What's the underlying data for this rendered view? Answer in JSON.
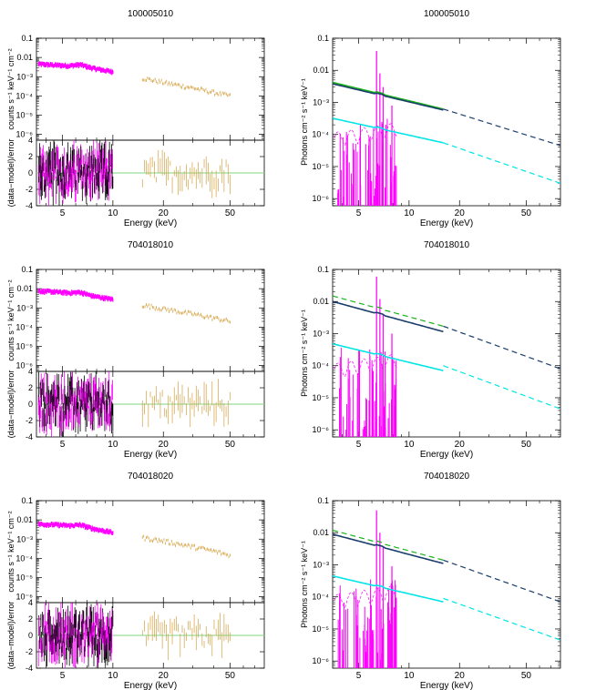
{
  "chart_data": [
    {
      "type": "scatter",
      "title": "100005010",
      "xlabel": "Energy (keV)",
      "ylabel": "counts s⁻¹ keV⁻¹ cm⁻²",
      "x_scale": "log",
      "xlim": [
        3.5,
        80
      ],
      "x_ticks": [
        5,
        10,
        20,
        50
      ],
      "y_scale": "log",
      "ylim": [
        5e-07,
        0.1
      ],
      "y_tick_labels": [
        "0.1",
        "0.01",
        "10⁻³",
        "10⁻⁴",
        "10⁻⁵",
        "10⁻⁶"
      ],
      "series": [
        {
          "name": "low-energy spectrum",
          "color": "#ff00ff",
          "x": [
            3.6,
            4.5,
            5.5,
            6.4,
            7.5,
            9,
            10
          ],
          "y": [
            0.0045,
            0.004,
            0.0037,
            0.0042,
            0.0028,
            0.0021,
            0.0018
          ]
        },
        {
          "name": "high-energy spectrum",
          "color": "#d4a040",
          "x": [
            15,
            20,
            30,
            40,
            50
          ],
          "y": [
            0.00085,
            0.0005,
            0.00026,
            0.00015,
            0.0001
          ]
        }
      ],
      "residuals": {
        "ylabel": "(data−model)/error",
        "ylim": [
          -4,
          4
        ],
        "y_ticks": [
          -4,
          -2,
          0,
          2,
          4
        ],
        "zero_line_color": "#7fd37f"
      }
    },
    {
      "type": "line",
      "title": "100005010",
      "xlabel": "Energy (keV)",
      "ylabel": "Photons cm⁻² s⁻¹ keV⁻¹",
      "x_scale": "log",
      "xlim": [
        3.5,
        80
      ],
      "x_ticks": [
        5,
        10,
        20,
        50
      ],
      "y_scale": "log",
      "ylim": [
        6e-07,
        0.1
      ],
      "y_tick_labels": [
        "0.1",
        "0.01",
        "10⁻³",
        "10⁻⁴",
        "10⁻⁵",
        "10⁻⁶"
      ],
      "series": [
        {
          "name": "total model (green)",
          "color": "#19b319",
          "style": "solid",
          "x": [
            3.5,
            16
          ],
          "y": [
            0.0042,
            0.00062
          ]
        },
        {
          "name": "total model (navy)",
          "color": "#1a3d6b",
          "style": "solid",
          "x": [
            3.5,
            16
          ],
          "y": [
            0.0038,
            0.00058
          ]
        },
        {
          "name": "extrapolation",
          "color": "#1a3d6b",
          "style": "dashed",
          "x": [
            16,
            80
          ],
          "y": [
            0.00062,
            4.5e-05
          ]
        },
        {
          "name": "secondary component",
          "color": "#00e5e5",
          "style": "solid",
          "x": [
            3.5,
            16
          ],
          "y": [
            0.00032,
            5.5e-05
          ]
        },
        {
          "name": "secondary extrapolation",
          "color": "#00e5e5",
          "style": "dashed",
          "x": [
            16,
            80
          ],
          "y": [
            5.5e-05,
            3e-06
          ]
        },
        {
          "name": "line components",
          "color": "#ff00ff",
          "style": "spikes",
          "x": [
            6.4,
            6.7,
            7.0,
            7.9
          ],
          "y": [
            0.04,
            0.008,
            0.003,
            0.0008
          ]
        }
      ]
    },
    {
      "type": "scatter",
      "title": "704018010",
      "xlabel": "Energy (keV)",
      "ylabel": "counts s⁻¹ keV⁻¹ cm⁻²",
      "x_scale": "log",
      "xlim": [
        3.5,
        80
      ],
      "x_ticks": [
        5,
        10,
        20,
        50
      ],
      "y_scale": "log",
      "ylim": [
        5e-07,
        0.1
      ],
      "y_tick_labels": [
        "0.1",
        "0.01",
        "10⁻³",
        "10⁻⁴",
        "10⁻⁵",
        "10⁻⁶"
      ],
      "series": [
        {
          "name": "low-energy spectrum",
          "color": "#ff00ff",
          "x": [
            3.6,
            4.5,
            5.5,
            6.4,
            7.5,
            9,
            10
          ],
          "y": [
            0.0075,
            0.0068,
            0.006,
            0.0065,
            0.0042,
            0.0032,
            0.0028
          ]
        },
        {
          "name": "high-energy spectrum",
          "color": "#d4a040",
          "x": [
            15,
            20,
            30,
            40,
            50
          ],
          "y": [
            0.0014,
            0.0009,
            0.00048,
            0.0003,
            0.0002
          ]
        }
      ],
      "residuals": {
        "ylabel": "(data−model)/error",
        "ylim": [
          -4,
          4
        ],
        "y_ticks": [
          -4,
          -2,
          0,
          2,
          4
        ],
        "zero_line_color": "#7fd37f"
      }
    },
    {
      "type": "line",
      "title": "704018010",
      "xlabel": "Energy (keV)",
      "ylabel": "Photons cm⁻² s⁻¹ keV⁻¹",
      "x_scale": "log",
      "xlim": [
        3.5,
        80
      ],
      "x_ticks": [
        5,
        10,
        20,
        50
      ],
      "y_scale": "log",
      "ylim": [
        6e-07,
        0.1
      ],
      "y_tick_labels": [
        "0.1",
        "0.01",
        "10⁻³",
        "10⁻⁴",
        "10⁻⁵",
        "10⁻⁶"
      ],
      "series": [
        {
          "name": "total model (green)",
          "color": "#19b319",
          "style": "dashed",
          "x": [
            3.5,
            16
          ],
          "y": [
            0.015,
            0.0017
          ]
        },
        {
          "name": "total model (navy)",
          "color": "#1a3d6b",
          "style": "solid",
          "x": [
            3.5,
            16
          ],
          "y": [
            0.01,
            0.00115
          ]
        },
        {
          "name": "extrapolation",
          "color": "#1a3d6b",
          "style": "dashed",
          "x": [
            16,
            80
          ],
          "y": [
            0.0017,
            8e-05
          ]
        },
        {
          "name": "secondary component",
          "color": "#00e5e5",
          "style": "solid",
          "x": [
            3.5,
            16
          ],
          "y": [
            0.00048,
            7e-05
          ]
        },
        {
          "name": "secondary extrapolation",
          "color": "#00e5e5",
          "style": "dashed",
          "x": [
            16,
            80
          ],
          "y": [
            0.0001,
            4.5e-06
          ]
        },
        {
          "name": "line components",
          "color": "#ff00ff",
          "style": "spikes",
          "x": [
            6.4,
            6.7,
            7.0,
            7.9
          ],
          "y": [
            0.06,
            0.012,
            0.004,
            0.001
          ]
        }
      ]
    },
    {
      "type": "scatter",
      "title": "704018020",
      "xlabel": "Energy (keV)",
      "ylabel": "counts s⁻¹ keV⁻¹ cm⁻²",
      "x_scale": "log",
      "xlim": [
        3.5,
        80
      ],
      "x_ticks": [
        5,
        10,
        20,
        50
      ],
      "y_scale": "log",
      "ylim": [
        5e-07,
        0.1
      ],
      "y_tick_labels": [
        "0.1",
        "0.01",
        "10⁻³",
        "10⁻⁴",
        "10⁻⁵",
        "10⁻⁶"
      ],
      "series": [
        {
          "name": "low-energy spectrum",
          "color": "#ff00ff",
          "x": [
            3.6,
            4.5,
            5.5,
            6.4,
            7.5,
            9,
            10
          ],
          "y": [
            0.006,
            0.0056,
            0.005,
            0.0055,
            0.0036,
            0.0026,
            0.0022
          ]
        },
        {
          "name": "high-energy spectrum",
          "color": "#d4a040",
          "x": [
            15,
            20,
            30,
            40,
            50
          ],
          "y": [
            0.0012,
            0.0008,
            0.0004,
            0.00024,
            0.00014
          ]
        }
      ],
      "residuals": {
        "ylabel": "(data−model)/error",
        "ylim": [
          -4,
          4
        ],
        "y_ticks": [
          -4,
          -2,
          0,
          2,
          4
        ],
        "zero_line_color": "#7fd37f"
      }
    },
    {
      "type": "line",
      "title": "704018020",
      "xlabel": "Energy (keV)",
      "ylabel": "Photons cm⁻² s⁻¹ keV⁻¹",
      "x_scale": "log",
      "xlim": [
        3.5,
        80
      ],
      "x_ticks": [
        5,
        10,
        20,
        50
      ],
      "y_scale": "log",
      "ylim": [
        6e-07,
        0.1
      ],
      "y_tick_labels": [
        "0.1",
        "0.01",
        "10⁻³",
        "10⁻⁴",
        "10⁻⁵",
        "10⁻⁶"
      ],
      "series": [
        {
          "name": "total model (green)",
          "color": "#19b319",
          "style": "dashed",
          "x": [
            3.5,
            16
          ],
          "y": [
            0.012,
            0.0014
          ]
        },
        {
          "name": "total model (navy)",
          "color": "#1a3d6b",
          "style": "solid",
          "x": [
            3.5,
            16
          ],
          "y": [
            0.009,
            0.0011
          ]
        },
        {
          "name": "extrapolation",
          "color": "#1a3d6b",
          "style": "dashed",
          "x": [
            16,
            80
          ],
          "y": [
            0.0014,
            7e-05
          ]
        },
        {
          "name": "secondary component",
          "color": "#00e5e5",
          "style": "solid",
          "x": [
            3.5,
            16
          ],
          "y": [
            0.00045,
            7e-05
          ]
        },
        {
          "name": "secondary extrapolation",
          "color": "#00e5e5",
          "style": "dashed",
          "x": [
            16,
            80
          ],
          "y": [
            9e-05,
            4.5e-06
          ]
        },
        {
          "name": "line components",
          "color": "#ff00ff",
          "style": "spikes",
          "x": [
            6.4,
            6.7,
            7.0,
            7.9
          ],
          "y": [
            0.05,
            0.01,
            0.0035,
            0.0009
          ]
        }
      ]
    }
  ]
}
